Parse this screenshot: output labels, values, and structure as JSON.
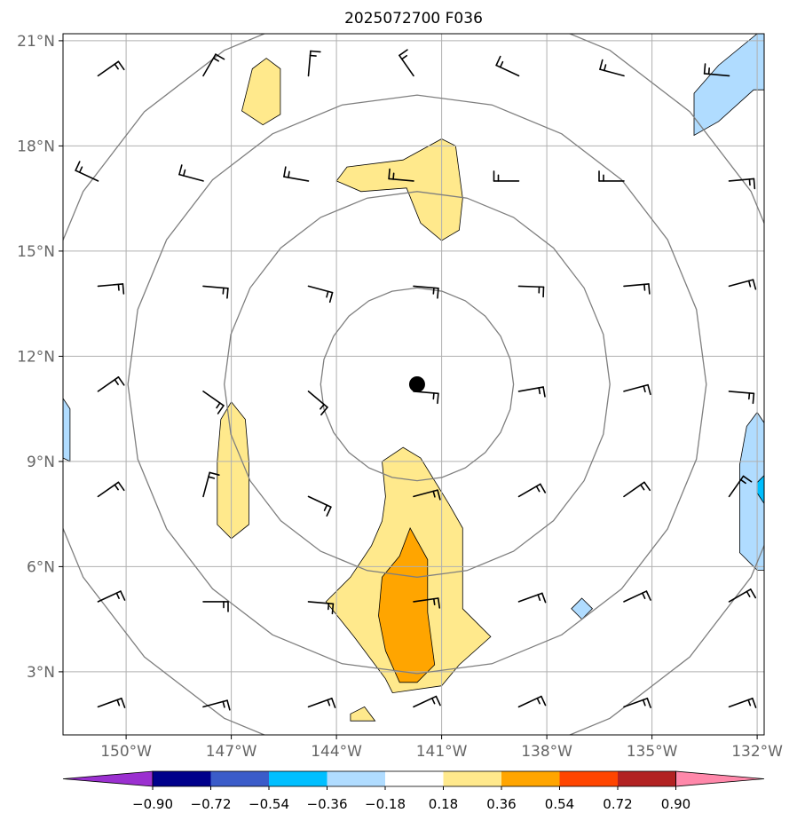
{
  "chart_data": {
    "type": "map",
    "title": "2025072700 F036",
    "x_ticks": [
      {
        "value": -150,
        "label": "150°W"
      },
      {
        "value": -147,
        "label": "147°W"
      },
      {
        "value": -144,
        "label": "144°W"
      },
      {
        "value": -141,
        "label": "141°W"
      },
      {
        "value": -138,
        "label": "138°W"
      },
      {
        "value": -135,
        "label": "135°W"
      },
      {
        "value": -132,
        "label": "132°W"
      }
    ],
    "y_ticks": [
      {
        "value": 3,
        "label": "3°N"
      },
      {
        "value": 6,
        "label": "6°N"
      },
      {
        "value": 9,
        "label": "9°N"
      },
      {
        "value": 12,
        "label": "12°N"
      },
      {
        "value": 15,
        "label": "15°N"
      },
      {
        "value": 18,
        "label": "18°N"
      },
      {
        "value": 21,
        "label": "21°N"
      }
    ],
    "xlim": [
      -151.8,
      -131.8
    ],
    "ylim": [
      1.2,
      21.2
    ],
    "grid": true,
    "center": {
      "lon": -141.7,
      "lat": 11.2
    },
    "range_rings_deg": [
      2.75,
      5.5,
      8.25,
      11.0
    ],
    "colorbar": {
      "levels": [
        -0.9,
        -0.72,
        -0.54,
        -0.36,
        -0.18,
        0.18,
        0.36,
        0.54,
        0.72,
        0.9
      ],
      "labels": [
        "−0.90",
        "−0.72",
        "−0.54",
        "−0.36",
        "−0.18",
        "0.18",
        "0.36",
        "0.54",
        "0.72",
        "0.90"
      ],
      "colors": [
        "#9b30d0",
        "#00008b",
        "#3b5cc9",
        "#00bfff",
        "#b0dcff",
        "#ffffff",
        "#ffe98c",
        "#ffa500",
        "#ff4500",
        "#b22222",
        "#ff88aa"
      ]
    },
    "filled_regions": [
      {
        "level": 0.18,
        "lonlat": [
          [
            -146.4,
            20.2
          ],
          [
            -146.0,
            20.5
          ],
          [
            -145.6,
            20.2
          ],
          [
            -145.6,
            18.9
          ],
          [
            -146.1,
            18.6
          ],
          [
            -146.7,
            19.0
          ]
        ]
      },
      {
        "level": 0.18,
        "lonlat": [
          [
            -141.0,
            18.2
          ],
          [
            -140.6,
            18.0
          ],
          [
            -140.4,
            16.5
          ],
          [
            -140.5,
            15.6
          ],
          [
            -141.0,
            15.3
          ],
          [
            -141.6,
            15.8
          ],
          [
            -142.0,
            16.8
          ],
          [
            -143.3,
            16.7
          ],
          [
            -144.0,
            17.0
          ],
          [
            -143.7,
            17.4
          ],
          [
            -142.1,
            17.6
          ]
        ]
      },
      {
        "level": 0.18,
        "lonlat": [
          [
            -147.0,
            10.7
          ],
          [
            -146.6,
            10.2
          ],
          [
            -146.5,
            9.0
          ],
          [
            -146.5,
            7.2
          ],
          [
            -147.0,
            6.8
          ],
          [
            -147.4,
            7.2
          ],
          [
            -147.4,
            9.0
          ],
          [
            -147.3,
            10.2
          ]
        ]
      },
      {
        "level": 0.18,
        "lonlat": [
          [
            -142.7,
            9.0
          ],
          [
            -142.1,
            9.4
          ],
          [
            -141.6,
            9.1
          ],
          [
            -140.8,
            7.8
          ],
          [
            -140.4,
            7.1
          ],
          [
            -140.4,
            4.8
          ],
          [
            -139.6,
            4.0
          ],
          [
            -140.5,
            3.2
          ],
          [
            -141.0,
            2.6
          ],
          [
            -142.4,
            2.4
          ],
          [
            -142.6,
            2.8
          ],
          [
            -143.5,
            4.0
          ],
          [
            -144.3,
            5.0
          ],
          [
            -143.6,
            5.7
          ],
          [
            -143.0,
            6.6
          ],
          [
            -142.7,
            7.3
          ],
          [
            -142.6,
            8.0
          ]
        ]
      },
      {
        "level": 0.18,
        "lonlat": [
          [
            -143.6,
            1.8
          ],
          [
            -143.2,
            2.0
          ],
          [
            -142.9,
            1.6
          ],
          [
            -143.6,
            1.6
          ]
        ]
      },
      {
        "level": 0.36,
        "lonlat": [
          [
            -141.9,
            7.1
          ],
          [
            -141.4,
            6.2
          ],
          [
            -141.4,
            4.7
          ],
          [
            -141.2,
            3.2
          ],
          [
            -141.7,
            2.7
          ],
          [
            -142.2,
            2.7
          ],
          [
            -142.6,
            3.6
          ],
          [
            -142.8,
            4.6
          ],
          [
            -142.7,
            5.7
          ],
          [
            -142.2,
            6.3
          ]
        ]
      },
      {
        "level": -0.18,
        "lonlat": [
          [
            -151.8,
            9.1
          ],
          [
            -151.6,
            9.0
          ],
          [
            -151.6,
            10.5
          ],
          [
            -151.8,
            10.8
          ]
        ]
      },
      {
        "level": -0.18,
        "lonlat": [
          [
            -132.0,
            21.2
          ],
          [
            -131.8,
            21.2
          ],
          [
            -131.8,
            19.6
          ],
          [
            -132.1,
            19.6
          ],
          [
            -133.1,
            18.7
          ],
          [
            -133.8,
            18.3
          ],
          [
            -133.8,
            19.5
          ],
          [
            -133.1,
            20.3
          ]
        ]
      },
      {
        "level": -0.18,
        "lonlat": [
          [
            -132.0,
            10.4
          ],
          [
            -131.8,
            10.1
          ],
          [
            -131.8,
            5.9
          ],
          [
            -132.0,
            5.9
          ],
          [
            -132.5,
            6.4
          ],
          [
            -132.5,
            8.9
          ],
          [
            -132.3,
            10.0
          ]
        ]
      },
      {
        "level": -0.36,
        "lonlat": [
          [
            -131.8,
            8.6
          ],
          [
            -131.8,
            7.8
          ],
          [
            -132.0,
            8.1
          ],
          [
            -132.0,
            8.4
          ]
        ]
      },
      {
        "level": -0.18,
        "lonlat": [
          [
            -137.0,
            5.1
          ],
          [
            -136.7,
            4.8
          ],
          [
            -137.0,
            4.5
          ],
          [
            -137.3,
            4.8
          ]
        ]
      }
    ],
    "wind_barbs": {
      "lats": [
        20,
        17,
        14,
        11,
        8,
        5,
        2
      ],
      "lons": [
        -150.8,
        -147.8,
        -144.8,
        -141.8,
        -138.8,
        -135.8,
        -132.8
      ],
      "angles_deg": [
        [
          35,
          60,
          85,
          125,
          155,
          165,
          175
        ],
        [
          155,
          165,
          170,
          175,
          180,
          180,
          5
        ],
        [
          5,
          355,
          345,
          355,
          358,
          5,
          15
        ],
        [
          35,
          325,
          320,
          355,
          10,
          15,
          355
        ],
        [
          35,
          75,
          335,
          15,
          30,
          35,
          55
        ],
        [
          25,
          0,
          355,
          8,
          20,
          25,
          30
        ],
        [
          20,
          15,
          20,
          25,
          25,
          20,
          20
        ]
      ]
    }
  },
  "colorbar_labels": [
    "−0.90",
    "−0.72",
    "−0.54",
    "−0.36",
    "−0.18",
    "0.18",
    "0.36",
    "0.54",
    "0.72",
    "0.90"
  ]
}
